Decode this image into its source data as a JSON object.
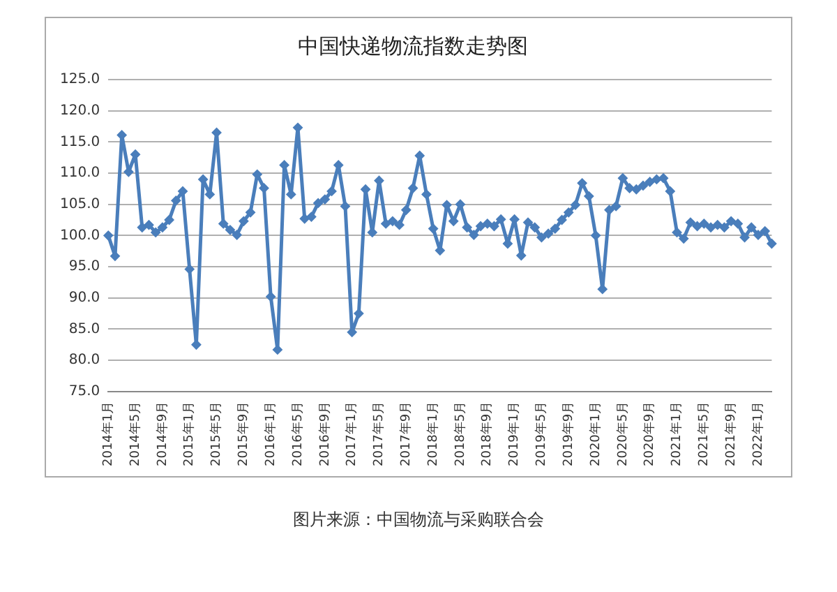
{
  "chart_data": {
    "type": "line",
    "title": "中国快递物流指数走势图",
    "categories": [
      "2014年1月",
      null,
      null,
      null,
      "2014年5月",
      null,
      null,
      null,
      "2014年9月",
      null,
      null,
      null,
      "2015年1月",
      null,
      null,
      null,
      "2015年5月",
      null,
      null,
      null,
      "2015年9月",
      null,
      null,
      null,
      "2016年1月",
      null,
      null,
      null,
      "2016年5月",
      null,
      null,
      null,
      "2016年9月",
      null,
      null,
      null,
      "2017年1月",
      null,
      null,
      null,
      "2017年5月",
      null,
      null,
      null,
      "2017年9月",
      null,
      null,
      null,
      "2018年1月",
      null,
      null,
      null,
      "2018年5月",
      null,
      null,
      null,
      "2018年9月",
      null,
      null,
      null,
      "2019年1月",
      null,
      null,
      null,
      "2019年5月",
      null,
      null,
      null,
      "2019年9月",
      null,
      null,
      null,
      "2020年1月",
      null,
      null,
      null,
      "2020年5月",
      null,
      null,
      null,
      "2020年9月",
      null,
      null,
      null,
      "2021年1月",
      null,
      null,
      null,
      "2021年5月",
      null,
      null,
      null,
      "2021年9月",
      null,
      null,
      null,
      "2022年1月",
      null,
      null
    ],
    "series": [
      {
        "color": "#4a7ebb",
        "values": [
          100.0,
          96.7,
          116.1,
          110.2,
          113.0,
          101.3,
          101.7,
          100.5,
          101.3,
          102.5,
          105.6,
          107.1,
          94.6,
          82.5,
          109.0,
          106.6,
          116.5,
          101.9,
          100.9,
          100.1,
          102.3,
          103.7,
          109.8,
          107.6,
          90.2,
          81.7,
          111.3,
          106.6,
          117.3,
          102.7,
          103.0,
          105.2,
          105.8,
          107.1,
          111.3,
          104.7,
          84.5,
          87.5,
          107.4,
          100.5,
          108.8,
          101.9,
          102.3,
          101.7,
          104.1,
          107.6,
          112.8,
          106.6,
          101.1,
          97.6,
          104.9,
          102.3,
          105.0,
          101.3,
          100.1,
          101.5,
          101.9,
          101.5,
          102.6,
          98.7,
          102.6,
          96.8,
          102.1,
          101.3,
          99.7,
          100.3,
          101.1,
          102.5,
          103.7,
          104.9,
          108.4,
          106.3,
          100.0,
          91.4,
          104.1,
          104.7,
          109.2,
          107.6,
          107.4,
          108.0,
          108.6,
          109.0,
          109.2,
          107.1,
          100.5,
          99.5,
          102.1,
          101.5,
          101.9,
          101.3,
          101.7,
          101.3,
          102.3,
          101.9,
          99.7,
          101.3,
          100.1,
          100.7,
          98.7
        ]
      }
    ],
    "ylim": [
      75,
      125
    ],
    "yticks": [
      {
        "value": 75,
        "label": "75.0"
      },
      {
        "value": 80,
        "label": "80.0"
      },
      {
        "value": 85,
        "label": "85.0"
      },
      {
        "value": 90,
        "label": "90.0"
      },
      {
        "value": 95,
        "label": "95.0"
      },
      {
        "value": 100,
        "label": "100.0"
      },
      {
        "value": 105,
        "label": "105.0"
      },
      {
        "value": 110,
        "label": "110.0"
      },
      {
        "value": 115,
        "label": "115.0"
      },
      {
        "value": 120,
        "label": "120.0"
      },
      {
        "value": 125,
        "label": "125.0"
      }
    ],
    "grid": "y",
    "legend": false,
    "marker": "diamond",
    "line_style": "solid",
    "annotations": [
      "图片来源：中国物流与采购联合会"
    ]
  }
}
